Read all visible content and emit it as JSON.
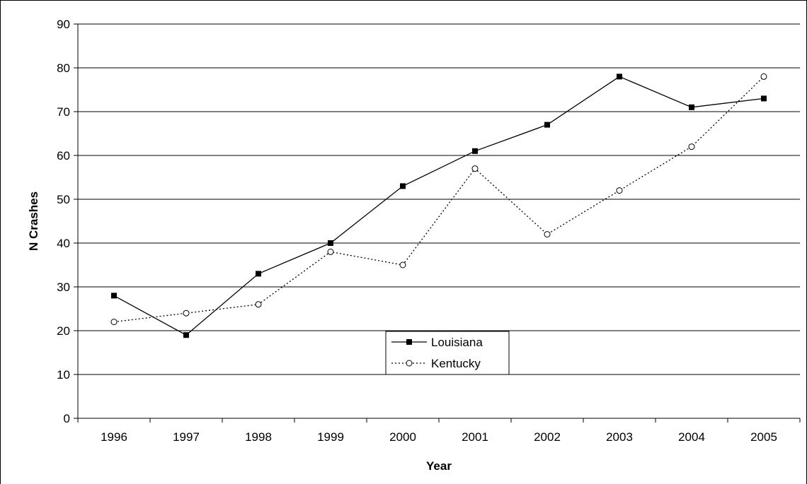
{
  "chart_data": {
    "type": "line",
    "title": "",
    "xlabel": "Year",
    "ylabel": "N Crashes",
    "categories": [
      "1996",
      "1997",
      "1998",
      "1999",
      "2000",
      "2001",
      "2002",
      "2003",
      "2004",
      "2005"
    ],
    "ylim": [
      0,
      90
    ],
    "yticks": [
      0,
      10,
      20,
      30,
      40,
      50,
      60,
      70,
      80,
      90
    ],
    "grid": true,
    "legend_position": "bottom-center",
    "series": [
      {
        "name": "Louisiana",
        "values": [
          28,
          19,
          33,
          40,
          53,
          61,
          67,
          78,
          71,
          73
        ],
        "line_style": "solid",
        "marker": "filled-square",
        "color": "#000000"
      },
      {
        "name": "Kentucky",
        "values": [
          22,
          24,
          26,
          38,
          35,
          57,
          42,
          52,
          62,
          78
        ],
        "line_style": "dotted",
        "marker": "open-circle",
        "color": "#000000"
      }
    ]
  }
}
